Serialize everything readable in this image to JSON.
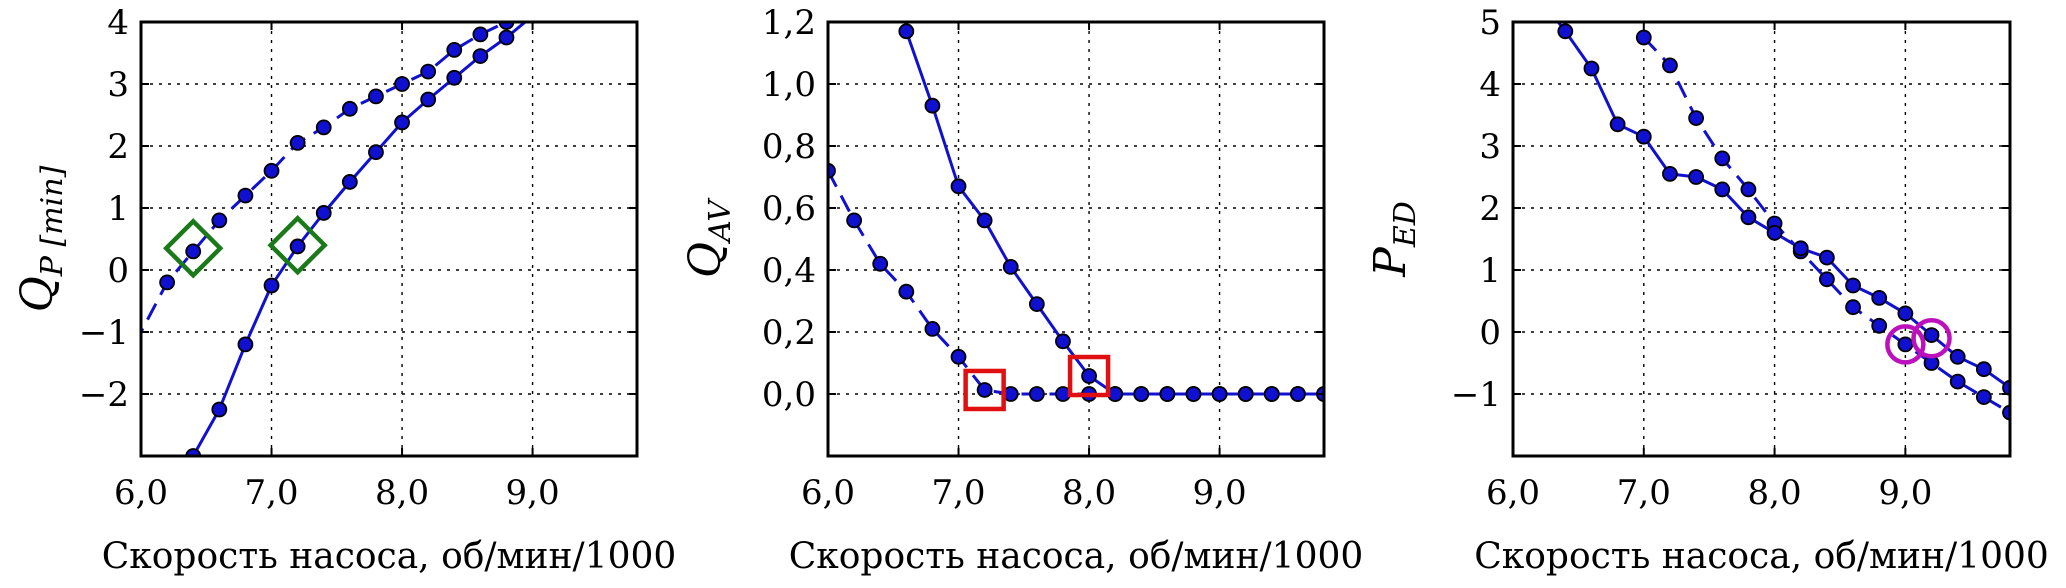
{
  "colors": {
    "series": "#1010d0",
    "green_marker": "#1a7a1a",
    "red_marker": "#e01010",
    "magenta_marker": "#bb10bb"
  },
  "chart_data": [
    {
      "type": "line",
      "xlabel": "Скорость насоса, об/мин/1000",
      "ylabel": "Q",
      "ylabel_sub": "P [min]",
      "xlim": [
        6.0,
        9.8
      ],
      "ylim": [
        -3.0,
        4.0
      ],
      "xticks": [
        6.0,
        7.0,
        8.0,
        9.0
      ],
      "xtick_labels": [
        "6,0",
        "7,0",
        "8,0",
        "9,0"
      ],
      "yticks": [
        -2,
        -1,
        0,
        1,
        2,
        3,
        4
      ],
      "ytick_labels": [
        "−2",
        "−1",
        "0",
        "1",
        "2",
        "3",
        "4"
      ],
      "grid": true,
      "series": [
        {
          "style": "dashed",
          "x": [
            5.95,
            6.2,
            6.4,
            6.6,
            6.8,
            7.0,
            7.2,
            7.4,
            7.6,
            7.8,
            8.0,
            8.2,
            8.4,
            8.6,
            8.8,
            9.0
          ],
          "y": [
            -1.2,
            -0.2,
            0.3,
            0.8,
            1.2,
            1.6,
            2.05,
            2.3,
            2.6,
            2.8,
            3.0,
            3.2,
            3.55,
            3.8,
            4.0,
            4.2
          ]
        },
        {
          "style": "solid",
          "x": [
            6.4,
            6.6,
            6.8,
            7.0,
            7.2,
            7.4,
            7.6,
            7.8,
            8.0,
            8.2,
            8.4,
            8.6,
            8.8,
            9.0
          ],
          "y": [
            -3.0,
            -2.25,
            -1.2,
            -0.25,
            0.38,
            0.92,
            1.42,
            1.9,
            2.38,
            2.75,
            3.1,
            3.45,
            3.75,
            4.1
          ]
        }
      ],
      "highlight_markers": [
        {
          "shape": "diamond",
          "color": "green",
          "x": 6.4,
          "y": 0.35
        },
        {
          "shape": "diamond",
          "color": "green",
          "x": 7.2,
          "y": 0.4
        }
      ]
    },
    {
      "type": "line",
      "xlabel": "Скорость насоса, об/мин/1000",
      "ylabel": "Q",
      "ylabel_sub": "AV",
      "xlim": [
        6.0,
        9.8
      ],
      "ylim": [
        -0.2,
        1.2
      ],
      "xticks": [
        6.0,
        7.0,
        8.0,
        9.0
      ],
      "xtick_labels": [
        "6,0",
        "7,0",
        "8,0",
        "9,0"
      ],
      "yticks": [
        0.0,
        0.2,
        0.4,
        0.6,
        0.8,
        1.0,
        1.2
      ],
      "ytick_labels": [
        "0,0",
        "0,2",
        "0,4",
        "0,6",
        "0,8",
        "1,0",
        "1,2"
      ],
      "grid": true,
      "series": [
        {
          "style": "dashed",
          "x": [
            6.0,
            6.2,
            6.4,
            6.6,
            6.8,
            7.0,
            7.2,
            7.4,
            7.6,
            7.8,
            8.0,
            8.2,
            8.4,
            8.6,
            8.8,
            9.0,
            9.2,
            9.4,
            9.6,
            9.8
          ],
          "y": [
            0.72,
            0.56,
            0.42,
            0.33,
            0.21,
            0.12,
            0.013,
            0.0,
            0.0,
            0.0,
            0.0,
            0.0,
            0.0,
            0.0,
            0.0,
            0.0,
            0.0,
            0.0,
            0.0,
            0.0
          ]
        },
        {
          "style": "solid",
          "x": [
            6.6,
            6.8,
            7.0,
            7.2,
            7.4,
            7.6,
            7.8,
            8.0,
            8.2,
            8.4,
            8.6,
            8.8,
            9.0,
            9.2,
            9.4,
            9.6,
            9.8
          ],
          "y": [
            1.17,
            0.93,
            0.67,
            0.56,
            0.41,
            0.29,
            0.17,
            0.058,
            0.0,
            0.0,
            0.0,
            0.0,
            0.0,
            0.0,
            0.0,
            0.0,
            0.0
          ]
        }
      ],
      "highlight_markers": [
        {
          "shape": "square",
          "color": "red",
          "x": 7.2,
          "y": 0.013
        },
        {
          "shape": "square",
          "color": "red",
          "x": 8.0,
          "y": 0.058
        }
      ]
    },
    {
      "type": "line",
      "xlabel": "Скорость насоса, об/мин/1000",
      "ylabel": "P",
      "ylabel_sub": "ED",
      "xlim": [
        6.0,
        9.8
      ],
      "ylim": [
        -2.0,
        5.0
      ],
      "xticks": [
        6.0,
        7.0,
        8.0,
        9.0
      ],
      "xtick_labels": [
        "6,0",
        "7,0",
        "8,0",
        "9,0"
      ],
      "yticks": [
        -1,
        0,
        1,
        2,
        3,
        4,
        5
      ],
      "ytick_labels": [
        "−1",
        "0",
        "1",
        "2",
        "3",
        "4",
        "5"
      ],
      "grid": true,
      "series": [
        {
          "style": "dashed",
          "x": [
            7.0,
            7.2,
            7.4,
            7.6,
            7.8,
            8.0,
            8.2,
            8.4,
            8.6,
            8.8,
            9.0,
            9.2,
            9.4,
            9.6,
            9.8
          ],
          "y": [
            4.75,
            4.3,
            3.45,
            2.8,
            2.3,
            1.75,
            1.3,
            0.85,
            0.4,
            0.1,
            -0.2,
            -0.5,
            -0.8,
            -1.05,
            -1.3
          ]
        },
        {
          "style": "solid",
          "x": [
            6.2,
            6.4,
            6.6,
            6.8,
            7.0,
            7.2,
            7.4,
            7.6,
            7.8,
            8.0,
            8.2,
            8.4,
            8.6,
            8.8,
            9.0,
            9.2,
            9.4,
            9.6,
            9.8
          ],
          "y": [
            5.4,
            4.85,
            4.25,
            3.35,
            3.15,
            2.55,
            2.5,
            2.3,
            1.85,
            1.6,
            1.35,
            1.2,
            0.75,
            0.55,
            0.3,
            -0.05,
            -0.4,
            -0.6,
            -0.9
          ]
        }
      ],
      "highlight_markers": [
        {
          "shape": "circle",
          "color": "magenta",
          "x": 9.0,
          "y": -0.2
        },
        {
          "shape": "circle",
          "color": "magenta",
          "x": 9.2,
          "y": -0.1
        }
      ]
    }
  ]
}
